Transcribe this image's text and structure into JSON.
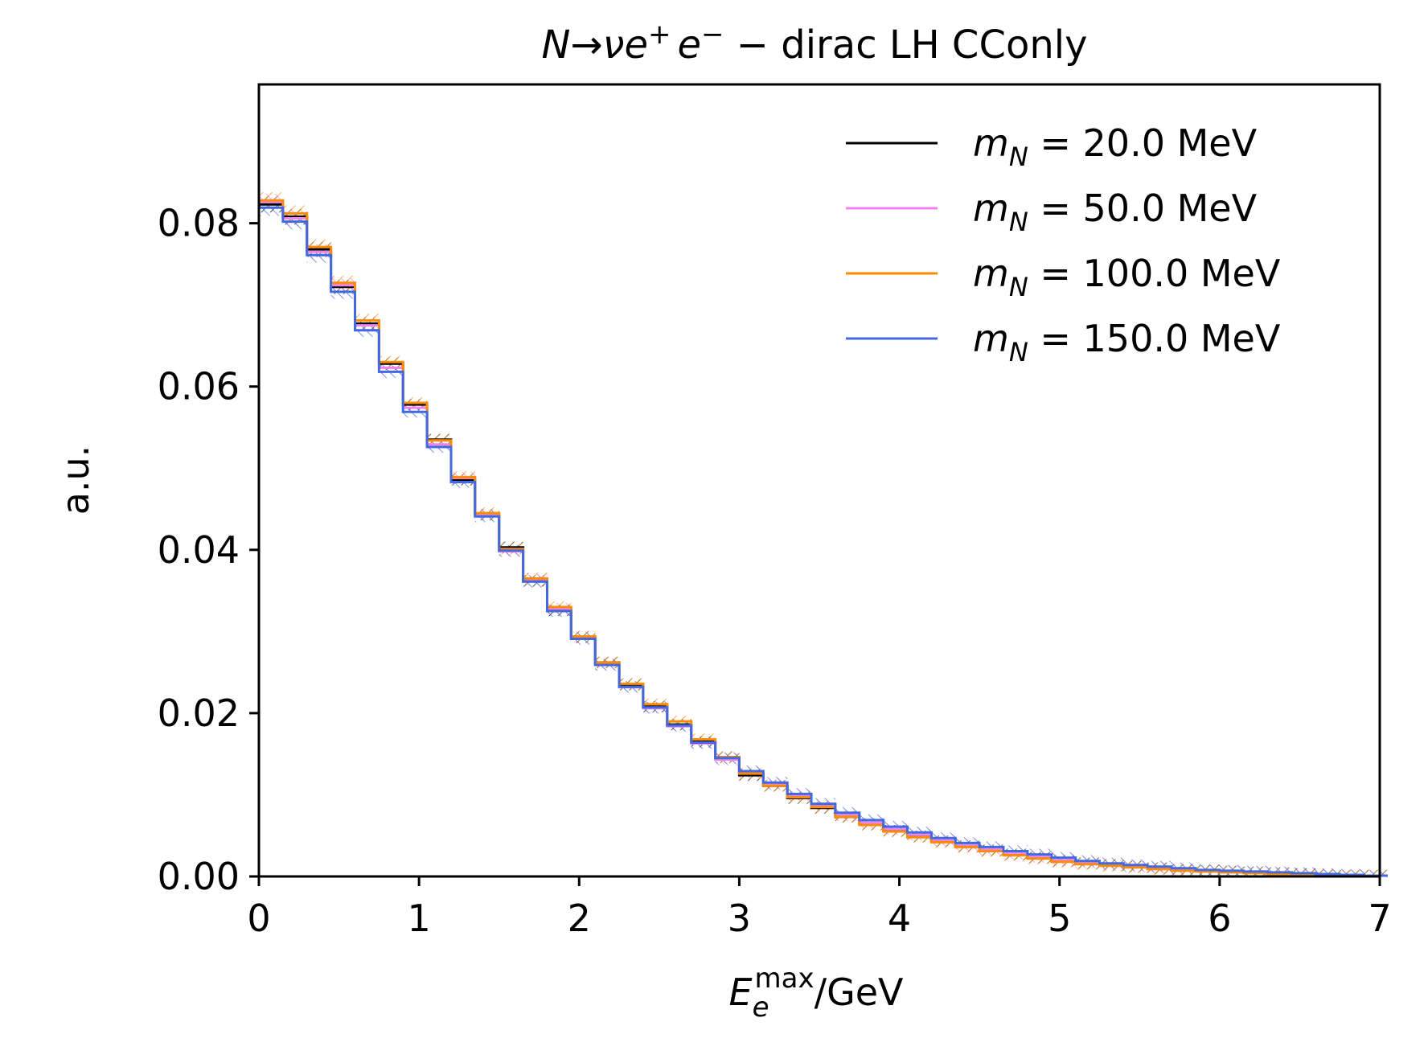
{
  "chart_data": {
    "type": "line",
    "style": "step histogram with hatched uncertainty bands",
    "title": {
      "particle": "N",
      "arrow": "→",
      "products": "νe",
      "plus": "+",
      "e2": "e",
      "minus": "−",
      "suffix": " − dirac LH CConly"
    },
    "xlabel": {
      "symbol": "E",
      "subscript": "e",
      "superscript": "max",
      "unit": "/GeV"
    },
    "ylabel": "a.u.",
    "xlim": [
      0,
      7
    ],
    "ylim": [
      0,
      0.097
    ],
    "xticks": [
      0,
      1,
      2,
      3,
      4,
      5,
      6,
      7
    ],
    "xtick_labels": [
      "0",
      "1",
      "2",
      "3",
      "4",
      "5",
      "6",
      "7"
    ],
    "yticks": [
      0.0,
      0.02,
      0.04,
      0.06,
      0.08
    ],
    "ytick_labels": [
      "0.00",
      "0.02",
      "0.04",
      "0.06",
      "0.08"
    ],
    "grid": false,
    "legend_position": "top-right",
    "bin_width": 0.15,
    "series": [
      {
        "name": "m_N = 20.0 MeV",
        "legend": {
          "symbol": "m",
          "subscript": "N",
          "text": " = 20.0 MeV"
        },
        "color": "#000000",
        "values": [
          0.0823,
          0.0808,
          0.0768,
          0.0722,
          0.0677,
          0.0628,
          0.0578,
          0.0535,
          0.0486,
          0.0443,
          0.0403,
          0.0362,
          0.0326,
          0.0293,
          0.0262,
          0.0235,
          0.0208,
          0.0186,
          0.0165,
          0.0146,
          0.0124,
          0.0111,
          0.0096,
          0.0084,
          0.0073,
          0.0064,
          0.0056,
          0.0049,
          0.0043,
          0.0037,
          0.0032,
          0.0027,
          0.0023,
          0.0019,
          0.0016,
          0.0014,
          0.0012,
          0.001,
          0.0008,
          0.0007,
          0.0006,
          0.0005,
          0.0004,
          0.0003,
          0.0002,
          0.0001,
          0.0001
        ]
      },
      {
        "name": "m_N = 50.0 MeV",
        "legend": {
          "symbol": "m",
          "subscript": "N",
          "text": " = 50.0 MeV"
        },
        "color": "#ee82ee",
        "values": [
          0.0826,
          0.0806,
          0.0765,
          0.0724,
          0.0675,
          0.0623,
          0.0574,
          0.0529,
          0.0488,
          0.0443,
          0.0398,
          0.0364,
          0.0328,
          0.0293,
          0.026,
          0.0232,
          0.0206,
          0.0184,
          0.0163,
          0.0143,
          0.0127,
          0.0113,
          0.0099,
          0.0087,
          0.0075,
          0.0066,
          0.0058,
          0.0051,
          0.0044,
          0.0038,
          0.0033,
          0.0028,
          0.0024,
          0.002,
          0.0017,
          0.0014,
          0.0012,
          0.001,
          0.0008,
          0.0007,
          0.0006,
          0.0005,
          0.0004,
          0.0003,
          0.0002,
          0.0001,
          0.0001
        ]
      },
      {
        "name": "m_N = 100.0 MeV",
        "legend": {
          "symbol": "m",
          "subscript": "N",
          "text": " = 100.0 MeV"
        },
        "color": "#ff8c00",
        "values": [
          0.0828,
          0.0812,
          0.0771,
          0.0727,
          0.0681,
          0.063,
          0.058,
          0.0534,
          0.0489,
          0.0445,
          0.0401,
          0.0365,
          0.033,
          0.0294,
          0.0262,
          0.0236,
          0.0211,
          0.019,
          0.0168,
          0.0146,
          0.0126,
          0.0111,
          0.0097,
          0.0085,
          0.0073,
          0.0063,
          0.0055,
          0.0048,
          0.0042,
          0.0036,
          0.0031,
          0.0026,
          0.0022,
          0.0018,
          0.0015,
          0.0013,
          0.0011,
          0.0009,
          0.0007,
          0.0006,
          0.0005,
          0.0004,
          0.0003,
          0.0002,
          0.0002,
          0.0001,
          0.0001
        ]
      },
      {
        "name": "m_N = 150.0 MeV",
        "legend": {
          "symbol": "m",
          "subscript": "N",
          "text": " = 150.0 MeV"
        },
        "color": "#4169e1",
        "values": [
          0.0819,
          0.0802,
          0.0761,
          0.0716,
          0.0669,
          0.0618,
          0.0569,
          0.0526,
          0.0483,
          0.0441,
          0.0399,
          0.0361,
          0.0325,
          0.0291,
          0.0259,
          0.0232,
          0.0207,
          0.0185,
          0.0164,
          0.0145,
          0.0129,
          0.0115,
          0.0101,
          0.0089,
          0.0078,
          0.0069,
          0.0061,
          0.0054,
          0.0047,
          0.0041,
          0.0036,
          0.0031,
          0.0027,
          0.0023,
          0.0019,
          0.0016,
          0.0014,
          0.0012,
          0.001,
          0.0008,
          0.0007,
          0.0006,
          0.0005,
          0.0004,
          0.0003,
          0.0002,
          0.0001
        ]
      }
    ]
  }
}
